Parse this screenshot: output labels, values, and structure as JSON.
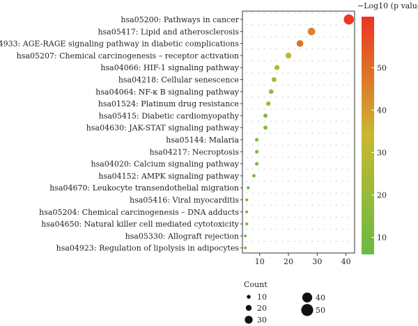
{
  "chart_data": {
    "type": "scatter",
    "subtype": "bubble",
    "xlim": [
      4,
      43
    ],
    "x_ticks": [
      10,
      20,
      30,
      40
    ],
    "grid": "dotted",
    "categories": [
      "hsa05200: Pathways in cancer",
      "hsa05417: Lipid and atherosclerosis",
      "hsa04933: AGE-RAGE signaling pathway in diabetic complications",
      "hsa05207: Chemical carcinogenesis – receptor activation",
      "hsa04066: HIF-1 signaling pathway",
      "hsa04218: Cellular senescence",
      "hsa04064: NF-κ B signaling pathway",
      "hsa01524: Platinum drug resistance",
      "hsa05415: Diabetic cardiomyopathy",
      "hsa04630: JAK-STAT signaling pathway",
      "hsa05144: Malaria",
      "hsa04217: Necroptosis",
      "hsa04020: Calcium signaling pathway",
      "hsa04152: AMPK signaling pathway",
      "hsa04670: Leukocyte transendothelial migration",
      "hsa05416: Viral myocarditis",
      "hsa05204: Chemical carcinogenesis – DNA adducts",
      "hsa04650: Natural killer cell mediated cytotoxicity",
      "hsa05330: Allograft rejection",
      "hsa04923: Regulation of lipolysis in adipocytes"
    ],
    "x": [
      41,
      28,
      24,
      20,
      16,
      15,
      14,
      13,
      12,
      12,
      9,
      9,
      9,
      8,
      6,
      5.5,
      5.5,
      5.5,
      5,
      5
    ],
    "size_count": [
      41,
      28,
      24,
      20,
      16,
      15,
      14,
      13,
      12,
      12,
      9,
      9,
      9,
      8,
      6,
      5.5,
      5.5,
      5.5,
      5,
      5
    ],
    "color_value": [
      61,
      45,
      49,
      31,
      29,
      25,
      19,
      20,
      16,
      16,
      13,
      12,
      12,
      12,
      10,
      9,
      8,
      8,
      9,
      8
    ],
    "color_legend": {
      "title": "−Log10 (p value)",
      "ticks": [
        10,
        20,
        30,
        40,
        50
      ],
      "range": [
        6,
        62
      ],
      "low_color": "#66bb44",
      "mid_color": "#c9b830",
      "high_color": "#ee3322"
    },
    "size_legend": {
      "title": "Count",
      "items": [
        10,
        20,
        30,
        40,
        50
      ]
    }
  }
}
